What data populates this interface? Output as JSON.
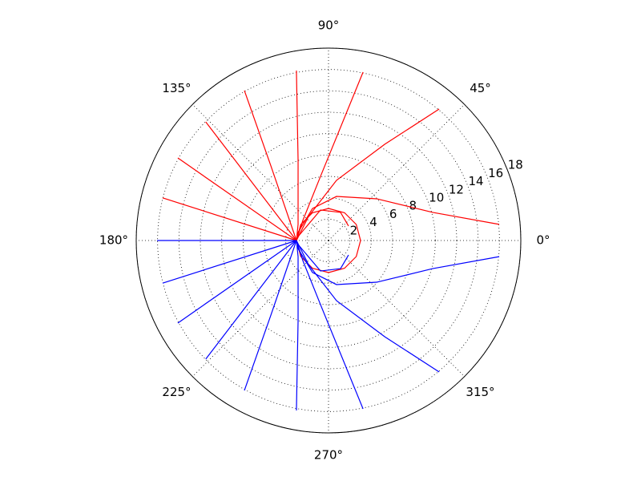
{
  "chart_data": {
    "type": "polar",
    "rlim": [
      0,
      18
    ],
    "rticks": [
      2,
      4,
      6,
      8,
      10,
      12,
      14,
      16,
      18
    ],
    "thetaticks": [
      {
        "value": 0,
        "label": "0°"
      },
      {
        "value": 45,
        "label": "45°"
      },
      {
        "value": 90,
        "label": "90°"
      },
      {
        "value": 135,
        "label": "135°"
      },
      {
        "value": 180,
        "label": "180°"
      },
      {
        "value": 225,
        "label": "225°"
      },
      {
        "value": 270,
        "label": "270°"
      },
      {
        "value": 315,
        "label": "315°"
      }
    ],
    "grid": true,
    "series": [
      {
        "color": "#ff0000",
        "x": [
          180,
          165.3,
          116.6,
          79.7,
          40.9,
          15.1,
          5.4
        ],
        "values": [
          3,
          2.95,
          3.35,
          4.19,
          5.96,
          10.1,
          16.05
        ]
      },
      {
        "color": "#ff0000",
        "x": [
          180,
          129.8,
          82.4,
          59.7,
          49.9
        ],
        "values": [
          3,
          2.93,
          5.68,
          10.42,
          16.08
        ]
      },
      {
        "color": "#ff0000",
        "x": [
          180,
          142,
          97.1,
          78.4
        ],
        "values": [
          3,
          3.05,
          6.05,
          16.08
        ]
      },
      {
        "color": "#ff0000",
        "x": [
          180,
          152.2,
          110.8,
          100.7
        ],
        "values": [
          3,
          3.22,
          8.02,
          16.18
        ]
      },
      {
        "color": "#ff0000",
        "x": [
          180,
          127.7,
          119.3
        ],
        "values": [
          3,
          8.82,
          16.09
        ]
      },
      {
        "color": "#ff0000",
        "x": [
          180,
          136
        ],
        "values": [
          3,
          15.97
        ]
      },
      {
        "color": "#ff0000",
        "x": [
          180,
          151.3
        ],
        "values": [
          3,
          16.08
        ]
      },
      {
        "color": "#ff0000",
        "x": [
          180,
          165.6
        ],
        "values": [
          3,
          16.03
        ]
      },
      {
        "color": "#ff0000",
        "x": [
          180,
          150,
          120,
          90,
          60,
          30,
          0,
          330,
          300,
          270,
          240,
          210,
          180
        ],
        "values": [
          3,
          3,
          3,
          3,
          3,
          3,
          3,
          3,
          3,
          3,
          3,
          3,
          3
        ]
      },
      {
        "color": "#ff0000",
        "x": [
          172.5,
          104.7,
          66.8,
          35.8
        ],
        "values": [
          2.87,
          2.95,
          2.86,
          2.31
        ]
      },
      {
        "color": "#0000ff",
        "x": [
          180,
          180
        ],
        "values": [
          3,
          16.05
        ]
      },
      {
        "color": "#0000ff",
        "x": [
          180,
          194.7,
          243.4,
          280.3,
          319.1,
          344.9,
          354.6
        ],
        "values": [
          3,
          2.95,
          3.35,
          4.19,
          5.96,
          10.1,
          16.05
        ]
      },
      {
        "color": "#0000ff",
        "x": [
          180,
          230.2,
          277.6,
          300.3,
          310.1
        ],
        "values": [
          3,
          2.93,
          5.68,
          10.42,
          16.08
        ]
      },
      {
        "color": "#0000ff",
        "x": [
          180,
          218,
          262.9,
          281.6
        ],
        "values": [
          3,
          3.05,
          6.05,
          16.08
        ]
      },
      {
        "color": "#0000ff",
        "x": [
          180,
          207.8,
          249.2,
          259.3
        ],
        "values": [
          3,
          3.22,
          8.02,
          16.18
        ]
      },
      {
        "color": "#0000ff",
        "x": [
          180,
          232.3,
          240.7
        ],
        "values": [
          3,
          8.82,
          16.09
        ]
      },
      {
        "color": "#0000ff",
        "x": [
          180,
          224
        ],
        "values": [
          3,
          15.97
        ]
      },
      {
        "color": "#0000ff",
        "x": [
          180,
          208.7
        ],
        "values": [
          3,
          16.08
        ]
      },
      {
        "color": "#0000ff",
        "x": [
          180,
          194.4
        ],
        "values": [
          3,
          16.03
        ]
      },
      {
        "color": "#0000ff",
        "x": [
          187.5,
          255.3,
          293.2,
          324.2
        ],
        "values": [
          2.87,
          2.95,
          2.86,
          2.31
        ]
      }
    ]
  }
}
